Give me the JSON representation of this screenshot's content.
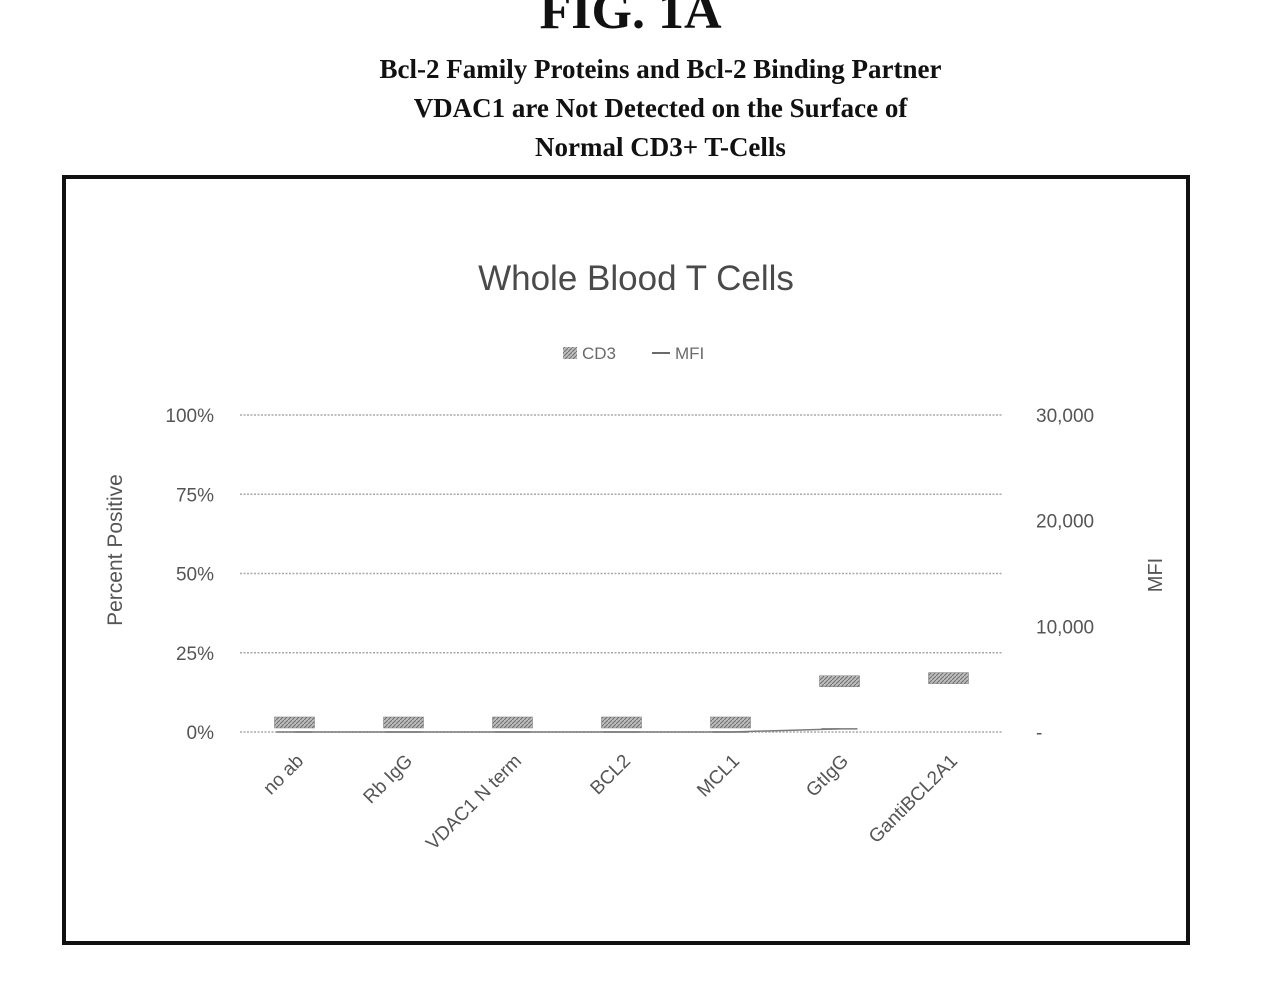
{
  "figure": {
    "label": "FIG. 1A",
    "caption_lines": [
      "Bcl-2 Family Proteins and Bcl-2 Binding Partner",
      "VDAC1 are Not Detected on the Surface of",
      "Normal CD3+ T-Cells"
    ]
  },
  "chart_data": {
    "type": "bar",
    "title": "Whole Blood T Cells",
    "categories": [
      "no ab",
      "Rb IgG",
      "VDAC1 N term",
      "BCL2",
      "MCL1",
      "GtIgG",
      "GantiBCL2A1"
    ],
    "series": [
      {
        "name": "CD3",
        "type": "bar",
        "axis": "left",
        "values": [
          3,
          3,
          3,
          3,
          3,
          16,
          17
        ]
      },
      {
        "name": "MFI",
        "type": "line",
        "axis": "right",
        "values": [
          0,
          0,
          0,
          0,
          0,
          300,
          null
        ]
      }
    ],
    "ylabel": "Percent Positive",
    "y2label": "MFI",
    "ylim": [
      0,
      100
    ],
    "y2lim": [
      0,
      30000
    ],
    "yticks": [
      "0%",
      "25%",
      "50%",
      "75%",
      "100%"
    ],
    "yticks_values": [
      0,
      25,
      50,
      75,
      100
    ],
    "y2ticks": [
      "-",
      "10,000",
      "20,000",
      "30,000"
    ],
    "y2ticks_values": [
      0,
      10000,
      20000,
      30000
    ],
    "grid": true,
    "legend": "top-center"
  }
}
